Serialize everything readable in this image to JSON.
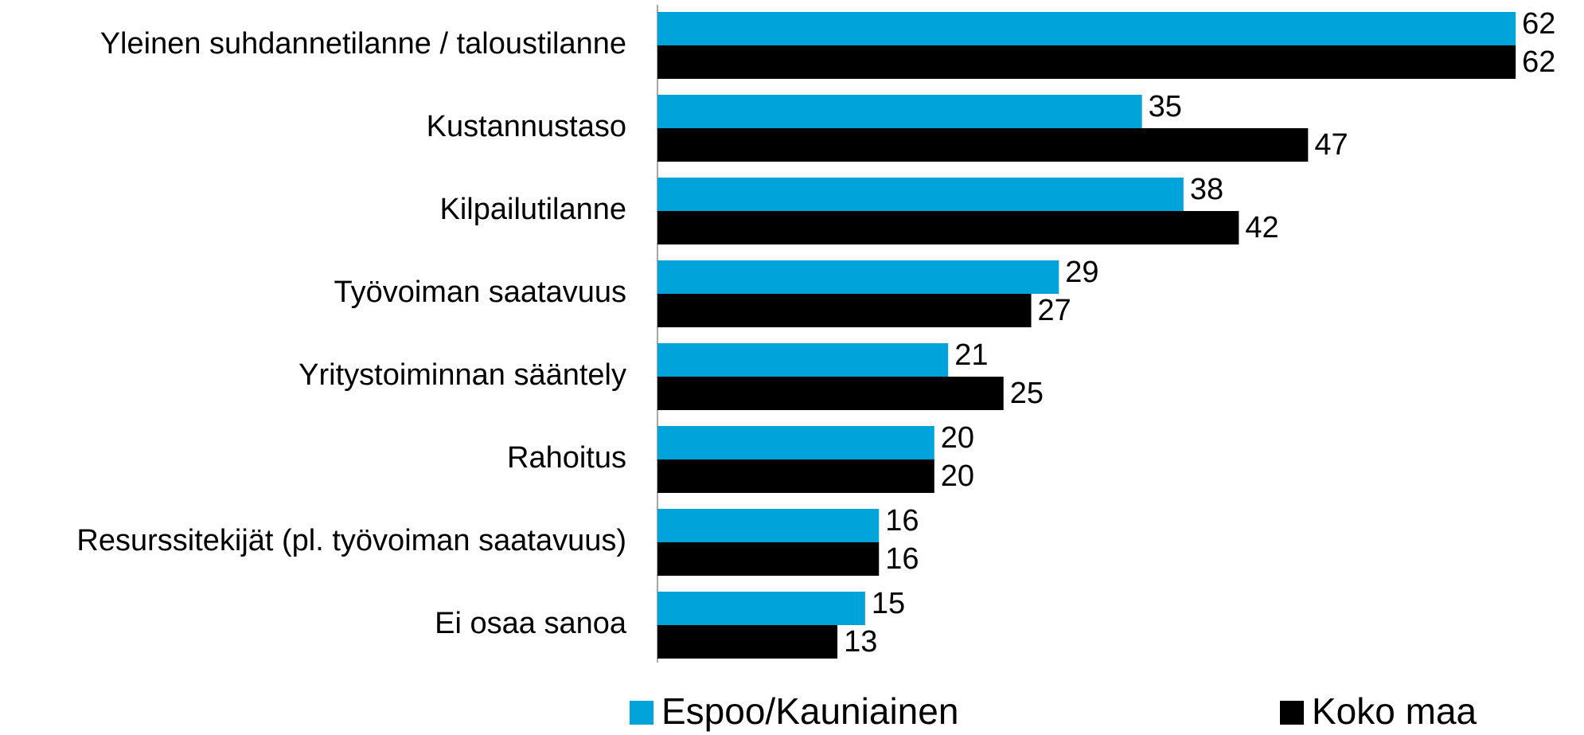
{
  "chart_data": {
    "type": "bar",
    "orientation": "horizontal",
    "categories": [
      "Yleinen suhdannetilanne / taloustilanne",
      "Kustannustaso",
      "Kilpailutilanne",
      "Työvoiman saatavuus",
      "Yritystoiminnan sääntely",
      "Rahoitus",
      "Resurssitekijät (pl. työvoiman saatavuus)",
      "Ei osaa sanoa"
    ],
    "series": [
      {
        "name": "Espoo/Kauniainen",
        "color": "#00a3da",
        "values": [
          62,
          35,
          38,
          29,
          21,
          20,
          16,
          15
        ]
      },
      {
        "name": "Koko maa",
        "color": "#000000",
        "values": [
          62,
          47,
          42,
          27,
          25,
          20,
          16,
          13
        ]
      }
    ],
    "legend": "bottom"
  }
}
